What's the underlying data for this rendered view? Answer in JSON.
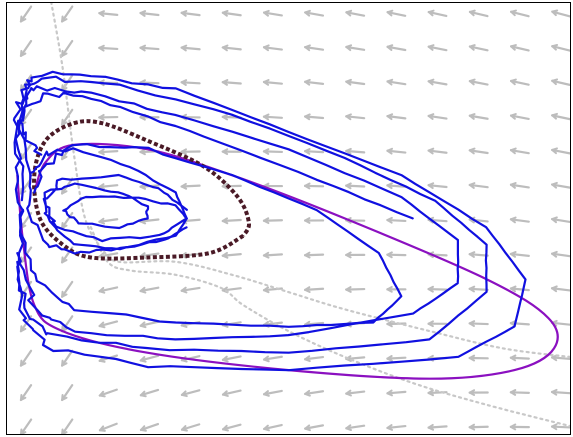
{
  "chart_data": {
    "type": "line",
    "title": "",
    "xlabel": "",
    "ylabel": "",
    "xlim": [
      0,
      1
    ],
    "ylim": [
      0,
      1
    ],
    "grid": false,
    "frame": true,
    "legend": "none",
    "vector_field": {
      "name": "",
      "color": "#bdbdbd",
      "grid_cols": 14,
      "grid_rows": 13,
      "style": "arrows"
    },
    "nullclines": [
      {
        "name": "",
        "color": "#c8c8c8",
        "style": "dotted",
        "points": [
          [
            0.08,
            1.0
          ],
          [
            0.1,
            0.85
          ],
          [
            0.12,
            0.65
          ],
          [
            0.14,
            0.5
          ],
          [
            0.17,
            0.43
          ],
          [
            0.2,
            0.4
          ],
          [
            0.3,
            0.4
          ],
          [
            0.4,
            0.37
          ],
          [
            0.5,
            0.33
          ],
          [
            0.6,
            0.29
          ],
          [
            0.75,
            0.24
          ],
          [
            0.88,
            0.2
          ],
          [
            1.0,
            0.18
          ]
        ]
      },
      {
        "name": "",
        "color": "#c8c8c8",
        "style": "dotted",
        "points": [
          [
            0.15,
            0.48
          ],
          [
            0.18,
            0.4
          ],
          [
            0.22,
            0.38
          ],
          [
            0.3,
            0.37
          ],
          [
            0.38,
            0.34
          ],
          [
            0.42,
            0.3
          ],
          [
            0.5,
            0.24
          ],
          [
            0.6,
            0.18
          ],
          [
            0.72,
            0.12
          ],
          [
            0.85,
            0.07
          ],
          [
            1.0,
            0.02
          ]
        ]
      }
    ],
    "series": [
      {
        "name": "",
        "color": "#8b10c0",
        "style": "solid",
        "width": 2.2,
        "jitter": 0,
        "points": [
          [
            0.02,
            0.6
          ],
          [
            0.03,
            0.45
          ],
          [
            0.05,
            0.3
          ],
          [
            0.1,
            0.24
          ],
          [
            0.25,
            0.19
          ],
          [
            0.5,
            0.15
          ],
          [
            0.75,
            0.13
          ],
          [
            0.9,
            0.15
          ],
          [
            0.97,
            0.2
          ],
          [
            0.96,
            0.27
          ],
          [
            0.85,
            0.36
          ],
          [
            0.6,
            0.5
          ],
          [
            0.4,
            0.6
          ],
          [
            0.25,
            0.66
          ],
          [
            0.12,
            0.67
          ],
          [
            0.07,
            0.63
          ],
          [
            0.05,
            0.56
          ]
        ]
      },
      {
        "name": "",
        "color": "#4a1a26",
        "style": "dotted",
        "width": 4,
        "jitter": 0,
        "points": [
          [
            0.42,
            0.46
          ],
          [
            0.36,
            0.42
          ],
          [
            0.25,
            0.41
          ],
          [
            0.15,
            0.41
          ],
          [
            0.1,
            0.44
          ],
          [
            0.06,
            0.5
          ],
          [
            0.05,
            0.6
          ],
          [
            0.07,
            0.68
          ],
          [
            0.12,
            0.72
          ],
          [
            0.17,
            0.72
          ],
          [
            0.25,
            0.68
          ],
          [
            0.35,
            0.62
          ],
          [
            0.41,
            0.55
          ],
          [
            0.43,
            0.49
          ],
          [
            0.42,
            0.46
          ]
        ]
      },
      {
        "name": "",
        "color": "#1010e0",
        "style": "solid",
        "width": 2.2,
        "jitter": 0.006,
        "points": [
          [
            0.32,
            0.48
          ],
          [
            0.28,
            0.45
          ],
          [
            0.2,
            0.43
          ],
          [
            0.12,
            0.44
          ],
          [
            0.07,
            0.5
          ],
          [
            0.07,
            0.56
          ],
          [
            0.12,
            0.58
          ],
          [
            0.2,
            0.56
          ],
          [
            0.25,
            0.53
          ],
          [
            0.25,
            0.5
          ],
          [
            0.2,
            0.48
          ],
          [
            0.13,
            0.49
          ],
          [
            0.1,
            0.52
          ],
          [
            0.14,
            0.55
          ],
          [
            0.22,
            0.55
          ],
          [
            0.3,
            0.53
          ],
          [
            0.32,
            0.5
          ],
          [
            0.27,
            0.46
          ],
          [
            0.17,
            0.45
          ],
          [
            0.09,
            0.48
          ],
          [
            0.07,
            0.54
          ],
          [
            0.1,
            0.59
          ],
          [
            0.2,
            0.6
          ],
          [
            0.27,
            0.57
          ],
          [
            0.32,
            0.52
          ]
        ]
      },
      {
        "name": "",
        "color": "#1010e0",
        "style": "solid",
        "width": 2.2,
        "jitter": 0.006,
        "points": [
          [
            0.32,
            0.5
          ],
          [
            0.3,
            0.46
          ],
          [
            0.2,
            0.43
          ],
          [
            0.12,
            0.42
          ],
          [
            0.07,
            0.44
          ],
          [
            0.04,
            0.52
          ],
          [
            0.04,
            0.6
          ],
          [
            0.07,
            0.65
          ],
          [
            0.12,
            0.66
          ],
          [
            0.22,
            0.62
          ],
          [
            0.3,
            0.56
          ],
          [
            0.32,
            0.5
          ]
        ]
      },
      {
        "name": "",
        "color": "#1010e0",
        "style": "solid",
        "width": 2.2,
        "jitter": 0.009,
        "points": [
          [
            0.72,
            0.5
          ],
          [
            0.55,
            0.59
          ],
          [
            0.35,
            0.69
          ],
          [
            0.2,
            0.76
          ],
          [
            0.1,
            0.79
          ],
          [
            0.04,
            0.77
          ],
          [
            0.02,
            0.7
          ],
          [
            0.02,
            0.58
          ],
          [
            0.03,
            0.46
          ],
          [
            0.06,
            0.35
          ],
          [
            0.12,
            0.29
          ],
          [
            0.3,
            0.26
          ],
          [
            0.5,
            0.25
          ],
          [
            0.65,
            0.26
          ],
          [
            0.7,
            0.32
          ],
          [
            0.66,
            0.42
          ],
          [
            0.55,
            0.52
          ],
          [
            0.4,
            0.6
          ],
          [
            0.25,
            0.66
          ],
          [
            0.12,
            0.67
          ],
          [
            0.07,
            0.63
          ],
          [
            0.05,
            0.56
          ]
        ]
      },
      {
        "name": "",
        "color": "#1010e0",
        "style": "solid",
        "width": 2.2,
        "jitter": 0.009,
        "points": [
          [
            0.06,
            0.64
          ],
          [
            0.03,
            0.7
          ],
          [
            0.03,
            0.78
          ],
          [
            0.06,
            0.8
          ],
          [
            0.15,
            0.79
          ],
          [
            0.3,
            0.74
          ],
          [
            0.5,
            0.66
          ],
          [
            0.7,
            0.55
          ],
          [
            0.8,
            0.45
          ],
          [
            0.8,
            0.35
          ],
          [
            0.72,
            0.28
          ],
          [
            0.5,
            0.23
          ],
          [
            0.3,
            0.22
          ],
          [
            0.12,
            0.24
          ],
          [
            0.05,
            0.29
          ],
          [
            0.03,
            0.4
          ],
          [
            0.03,
            0.52
          ]
        ]
      },
      {
        "name": "",
        "color": "#1010e0",
        "style": "solid",
        "width": 2.2,
        "jitter": 0.009,
        "points": [
          [
            0.04,
            0.6
          ],
          [
            0.02,
            0.72
          ],
          [
            0.03,
            0.8
          ],
          [
            0.06,
            0.82
          ],
          [
            0.2,
            0.81
          ],
          [
            0.4,
            0.74
          ],
          [
            0.6,
            0.64
          ],
          [
            0.76,
            0.54
          ],
          [
            0.85,
            0.44
          ],
          [
            0.85,
            0.33
          ],
          [
            0.75,
            0.22
          ],
          [
            0.5,
            0.19
          ],
          [
            0.25,
            0.2
          ],
          [
            0.08,
            0.23
          ],
          [
            0.03,
            0.3
          ],
          [
            0.02,
            0.42
          ]
        ]
      },
      {
        "name": "",
        "color": "#1010e0",
        "style": "solid",
        "width": 2.2,
        "jitter": 0.009,
        "points": [
          [
            0.03,
            0.55
          ],
          [
            0.02,
            0.7
          ],
          [
            0.03,
            0.8
          ],
          [
            0.05,
            0.83
          ],
          [
            0.15,
            0.83
          ],
          [
            0.3,
            0.8
          ],
          [
            0.5,
            0.7
          ],
          [
            0.7,
            0.6
          ],
          [
            0.85,
            0.48
          ],
          [
            0.92,
            0.36
          ],
          [
            0.9,
            0.25
          ],
          [
            0.8,
            0.18
          ],
          [
            0.5,
            0.15
          ],
          [
            0.25,
            0.16
          ],
          [
            0.08,
            0.2
          ],
          [
            0.03,
            0.27
          ],
          [
            0.02,
            0.4
          ]
        ]
      }
    ]
  }
}
